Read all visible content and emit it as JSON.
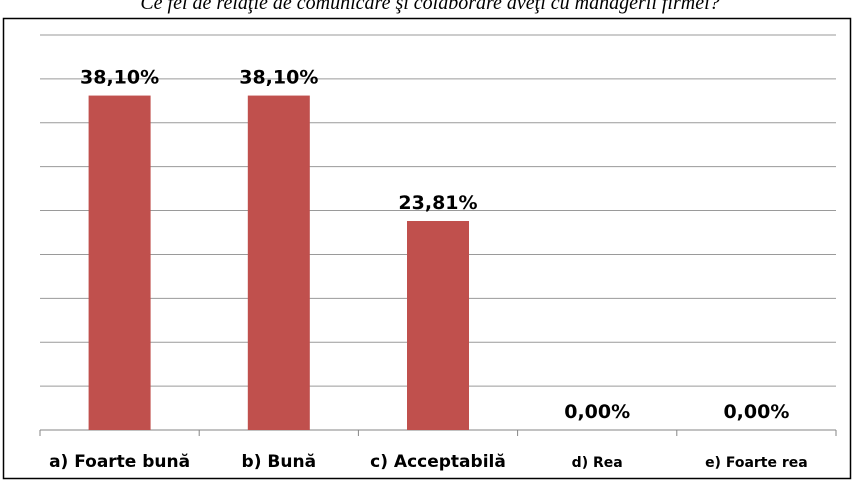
{
  "chart_data": {
    "type": "bar",
    "title": "Ce fel de relaţie de comunicare şi colaborare aveţi cu managerii firmei?",
    "categories": [
      "a)  Foarte bună",
      "b) Bună",
      "c)  Acceptabilă",
      "d)  Rea",
      "e)  Foarte rea"
    ],
    "values": [
      38.1,
      38.1,
      23.81,
      0,
      0
    ],
    "value_labels": [
      "38,10%",
      "38,10%",
      "23,81%",
      "0,00%",
      "0,00%"
    ],
    "color": "#c0504d",
    "ylim": [
      0,
      45
    ],
    "yticks": [
      0,
      5,
      10,
      15,
      20,
      25,
      30,
      35,
      40,
      45
    ],
    "grid": true
  }
}
